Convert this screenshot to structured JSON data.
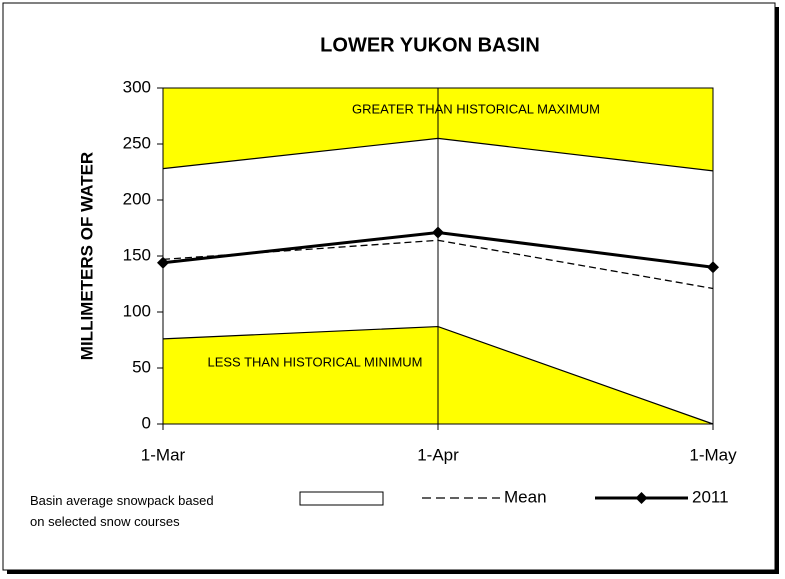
{
  "chart_data": {
    "type": "line",
    "title": "LOWER YUKON BASIN",
    "y_label": "MILLIMETERS OF WATER",
    "categories": [
      "1-Mar",
      "1-Apr",
      "1-May"
    ],
    "historical_max": [
      228,
      255,
      226
    ],
    "historical_min": [
      76,
      87,
      0
    ],
    "band_color": "#ffff00",
    "series": [
      {
        "name": "Mean",
        "color": "#000000",
        "style": "dashed",
        "values": [
          147,
          164,
          121
        ]
      },
      {
        "name": "2011",
        "color": "#000000",
        "style": "solid-diamond",
        "values": [
          144,
          171,
          140
        ]
      }
    ],
    "annotations": [
      "GREATER THAN HISTORICAL MAXIMUM",
      "LESS THAN HISTORICAL MINIMUM"
    ],
    "note": "Basin average snowpack based on selected snow courses",
    "ylim": [
      0,
      300
    ],
    "yticks": [
      0,
      50,
      100,
      150,
      200,
      250,
      300
    ]
  }
}
